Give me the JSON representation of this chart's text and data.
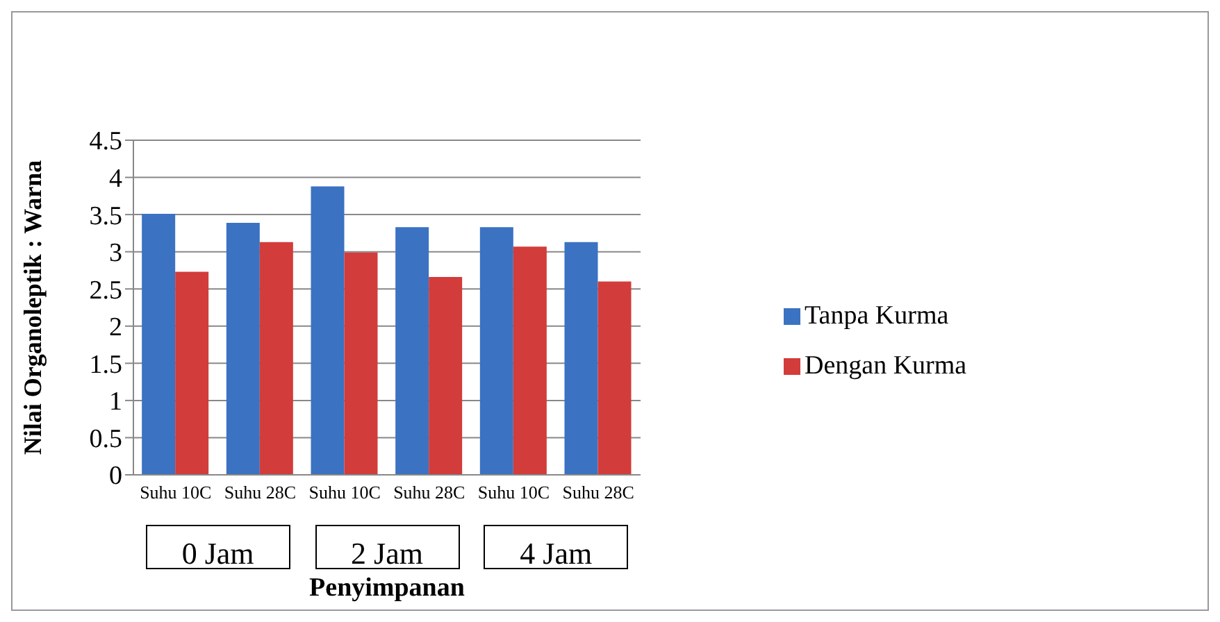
{
  "chart_data": {
    "type": "bar",
    "xlabel": "Penyimpanan",
    "ylabel": "Nilai Organoleptik : Warna",
    "categories": [
      "Suhu 10C",
      "Suhu 28C",
      "Suhu 10C",
      "Suhu 28C",
      "Suhu 10C",
      "Suhu 28C"
    ],
    "series": [
      {
        "name": "Tanpa Kurma",
        "color": "#3b72c2",
        "values": [
          3.51,
          3.39,
          3.88,
          3.33,
          3.33,
          3.13
        ]
      },
      {
        "name": "Dengan Kurma",
        "color": "#d23c3a",
        "values": [
          2.73,
          3.13,
          2.99,
          2.66,
          3.07,
          2.6
        ]
      }
    ],
    "annotations": [
      "0 Jam",
      "2 Jam",
      "4 Jam"
    ],
    "ylim": [
      0,
      4.5
    ],
    "yticks": [
      0,
      0.5,
      1,
      1.5,
      2,
      2.5,
      3,
      3.5,
      4,
      4.5
    ],
    "grid": "y",
    "legend": "right"
  }
}
